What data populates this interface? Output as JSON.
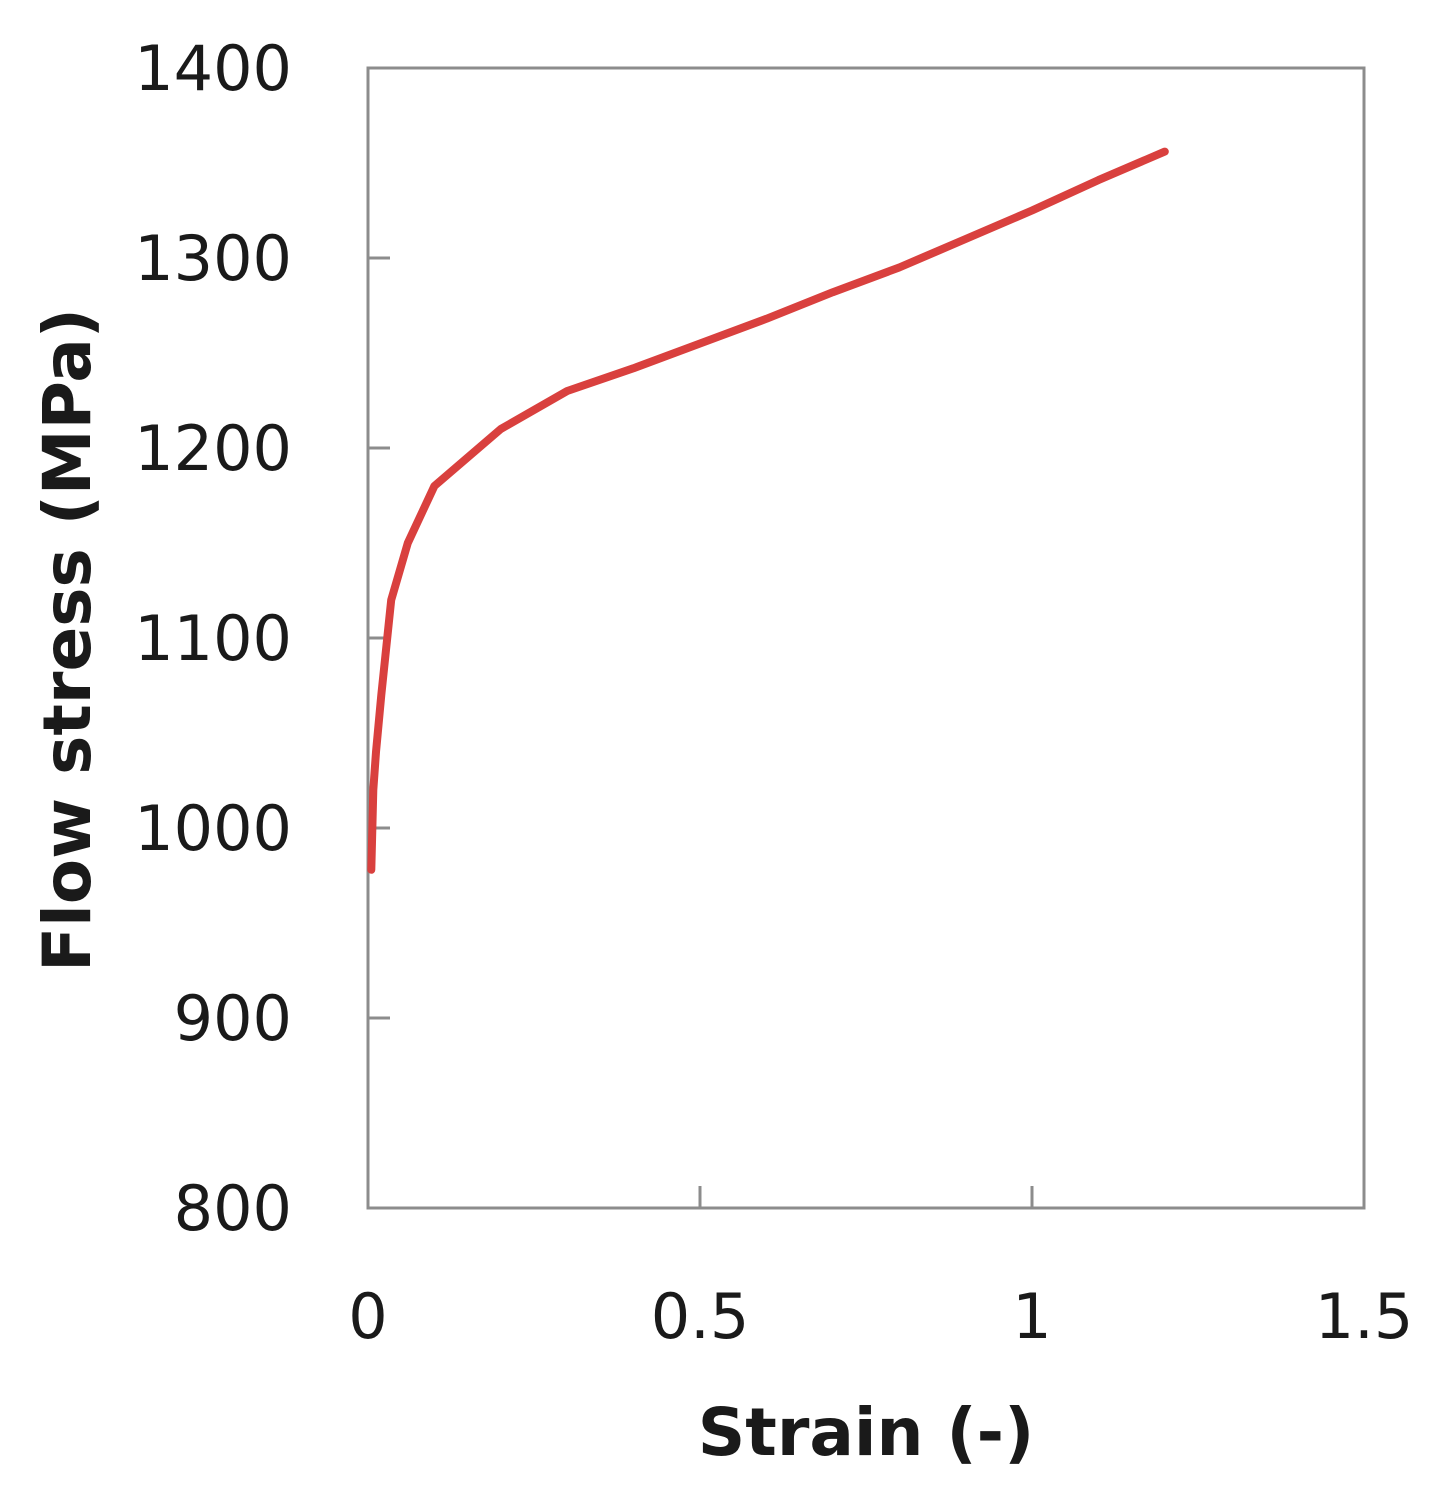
{
  "chart_data": {
    "type": "line",
    "title": "",
    "xlabel": "Strain (-)",
    "ylabel": "Flow stress (MPa)",
    "xlim": [
      0,
      1.5
    ],
    "ylim": [
      800,
      1400
    ],
    "x_ticks": [
      0,
      0.5,
      1,
      1.5
    ],
    "x_tick_labels": [
      "0",
      "0.5",
      "1",
      "1.5"
    ],
    "y_ticks": [
      800,
      900,
      1000,
      1100,
      1200,
      1300,
      1400
    ],
    "y_tick_labels": [
      "800",
      "900",
      "1000",
      "1100",
      "1200",
      "1300",
      "1400"
    ],
    "grid": false,
    "legend": "none",
    "series": [
      {
        "color": "#d9403e",
        "x": [
          0.005,
          0.008,
          0.012,
          0.02,
          0.035,
          0.06,
          0.1,
          0.2,
          0.3,
          0.4,
          0.5,
          0.6,
          0.7,
          0.8,
          0.9,
          1.0,
          1.1,
          1.2
        ],
        "y": [
          978,
          1020,
          1040,
          1070,
          1120,
          1150,
          1180,
          1210,
          1230,
          1242,
          1255,
          1268,
          1282,
          1295,
          1310,
          1325,
          1341,
          1356
        ]
      }
    ]
  }
}
